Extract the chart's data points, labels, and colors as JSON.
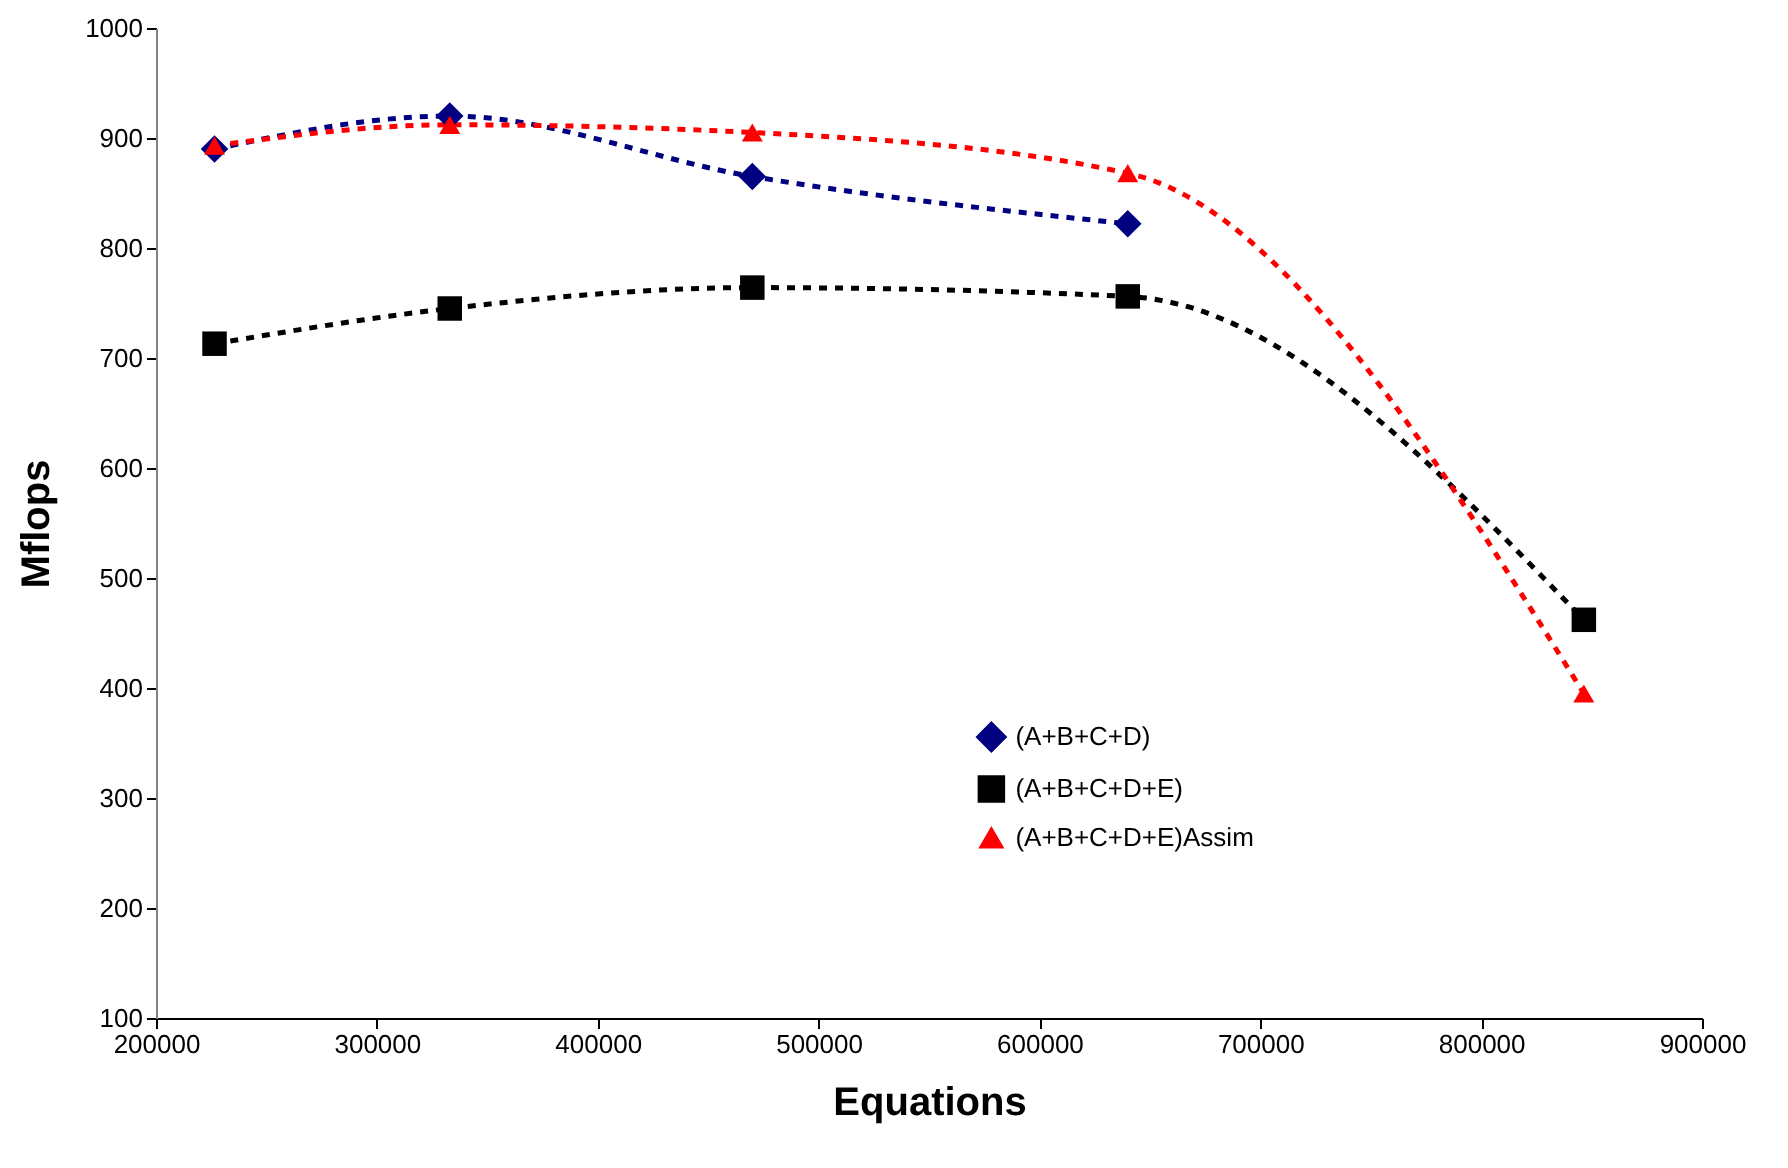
{
  "chart_data": {
    "type": "line",
    "xlabel": "Equations",
    "ylabel": "Mflops",
    "x": [
      226500,
      333000,
      470000,
      640000,
      846500
    ],
    "xlim": [
      200000,
      900000
    ],
    "xticks": [
      200000,
      300000,
      400000,
      500000,
      600000,
      700000,
      800000,
      900000
    ],
    "ylim": [
      100,
      1000
    ],
    "yticks": [
      100,
      200,
      300,
      400,
      500,
      600,
      700,
      800,
      900,
      1000
    ],
    "grid": false,
    "legend": "bottom right",
    "line_style": "dashed",
    "series": [
      {
        "name": "(A+B+C+D)",
        "color": "#000080",
        "marker": "diamond",
        "values": [
          890,
          920,
          865,
          822,
          null
        ]
      },
      {
        "name": "(A+B+C+D+E)",
        "color": "#000000",
        "marker": "square",
        "values": [
          713,
          745,
          764,
          756,
          462
        ]
      },
      {
        "name": "(A+B+C+D+E)Assim",
        "color": "#ff0000",
        "marker": "triangle",
        "values": [
          893,
          912,
          905,
          868,
          395
        ]
      }
    ]
  }
}
